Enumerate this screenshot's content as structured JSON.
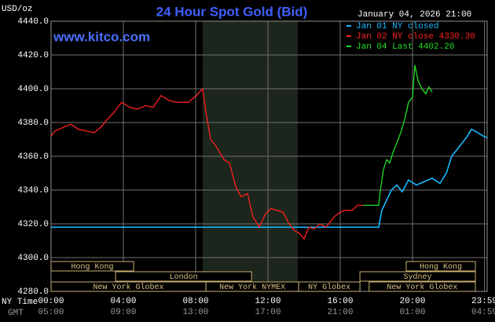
{
  "chart_data": {
    "type": "line",
    "title": "24 Hour Spot Gold (Bid)",
    "y_label": "USD/oz",
    "date": "January 04, 2026 21:00",
    "watermark": "www.kitco.com",
    "x_label": "NY Time",
    "x2_label": "GMT",
    "xlim": [
      0,
      24.13
    ],
    "ylim": [
      4280,
      4440
    ],
    "yticks": [
      {
        "value": 4280,
        "label": "4280.0"
      },
      {
        "value": 4300,
        "label": "4300.0"
      },
      {
        "value": 4320,
        "label": "4320.0"
      },
      {
        "value": 4340,
        "label": "4340.0"
      },
      {
        "value": 4360,
        "label": "4360.0"
      },
      {
        "value": 4380,
        "label": "4380.0"
      },
      {
        "value": 4400,
        "label": "4400.0"
      },
      {
        "value": 4420,
        "label": "4420.0"
      },
      {
        "value": 4440,
        "label": "4440.0"
      }
    ],
    "xticks": [
      {
        "value": 0,
        "label": "00:00"
      },
      {
        "value": 4,
        "label": "04:00"
      },
      {
        "value": 8,
        "label": "08:00"
      },
      {
        "value": 12,
        "label": "12:00"
      },
      {
        "value": 16,
        "label": "16:00"
      },
      {
        "value": 20,
        "label": "20:00"
      },
      {
        "value": 23.98,
        "label": "23:59"
      }
    ],
    "x2ticks": [
      {
        "value": 0,
        "label": "05:00"
      },
      {
        "value": 4,
        "label": "09:00"
      },
      {
        "value": 8,
        "label": "13:00"
      },
      {
        "value": 12,
        "label": "17:00"
      },
      {
        "value": 16,
        "label": "21:00"
      },
      {
        "value": 20,
        "label": "01:00"
      },
      {
        "value": 23.98,
        "label": "04:59"
      }
    ],
    "grid": true,
    "highlight_range": [
      8.39,
      13.65
    ],
    "sessions": [
      [
        {
          "label": "Hong Kong",
          "start": 0,
          "end": 4.57
        },
        {
          "label": "Hong Kong",
          "start": 19.65,
          "end": 23.48
        }
      ],
      [
        {
          "label": "London",
          "start": 3.57,
          "end": 11.09
        },
        {
          "label": "Sydney",
          "start": 17.09,
          "end": 23.48
        }
      ],
      [
        {
          "label": "New York Globex",
          "start": 0,
          "end": 8.57
        },
        {
          "label": "New York NYMEX",
          "start": 8.57,
          "end": 13.7
        },
        {
          "label": "NY Globex",
          "start": 13.7,
          "end": 17.09
        },
        {
          "label": "New York Globex",
          "start": 17.6,
          "end": 23.48
        }
      ]
    ],
    "series": [
      {
        "name": "Jan 01 NY closed",
        "color": "#18b8ff",
        "x": [
          0,
          18.13,
          18.3,
          18.57,
          18.83,
          19.13,
          19.43,
          19.78,
          20.22,
          20.65,
          21.09,
          21.52,
          21.87,
          22.17,
          22.61,
          23.04,
          23.26,
          23.61,
          23.91,
          24.13
        ],
        "values": [
          4318,
          4318,
          4328,
          4334,
          4340,
          4343,
          4339,
          4346,
          4343,
          4345,
          4347,
          4344,
          4350,
          4360,
          4366,
          4372,
          4376,
          4374,
          4372,
          4371
        ]
      },
      {
        "name": "Jan 02 NY close 4330.30",
        "color": "#ff2020",
        "x": [
          0,
          0.22,
          0.65,
          1.09,
          1.52,
          1.96,
          2.39,
          2.83,
          3.04,
          3.48,
          3.91,
          4.35,
          4.78,
          5.22,
          5.65,
          6.09,
          6.52,
          6.96,
          7.61,
          8.04,
          8.39,
          8.57,
          8.83,
          9.13,
          9.57,
          9.87,
          10.22,
          10.52,
          10.87,
          11.17,
          11.52,
          11.87,
          12.17,
          12.48,
          12.83,
          13.17,
          13.48,
          13.78,
          14.0,
          14.26,
          14.57,
          14.87,
          15.22,
          15.65,
          16.0,
          16.3,
          16.65,
          16.96,
          17.26
        ],
        "values": [
          4372,
          4375,
          4377,
          4379,
          4376,
          4375,
          4374,
          4378,
          4381,
          4386,
          4392,
          4389,
          4388,
          4390,
          4389,
          4396,
          4393,
          4392,
          4392,
          4396,
          4400,
          4386,
          4370,
          4366,
          4358,
          4356,
          4342,
          4336,
          4338,
          4324,
          4318,
          4326,
          4329,
          4328,
          4327,
          4320,
          4316,
          4314,
          4311,
          4318,
          4317,
          4320,
          4318,
          4324,
          4327,
          4328,
          4328,
          4331,
          4331
        ]
      },
      {
        "name": "Jan 04 Last 4402.20",
        "color": "#20e020",
        "x": [
          17.26,
          17.61,
          18.04,
          18.13,
          18.22,
          18.39,
          18.57,
          18.74,
          18.91,
          19.13,
          19.35,
          19.57,
          19.78,
          20.0,
          20.13,
          20.3,
          20.52,
          20.74,
          20.91,
          21.09
        ],
        "values": [
          4331,
          4331,
          4331,
          4331,
          4340,
          4352,
          4358,
          4356,
          4362,
          4368,
          4374,
          4382,
          4392,
          4395,
          4414,
          4405,
          4400,
          4397,
          4401,
          4398
        ]
      }
    ]
  }
}
